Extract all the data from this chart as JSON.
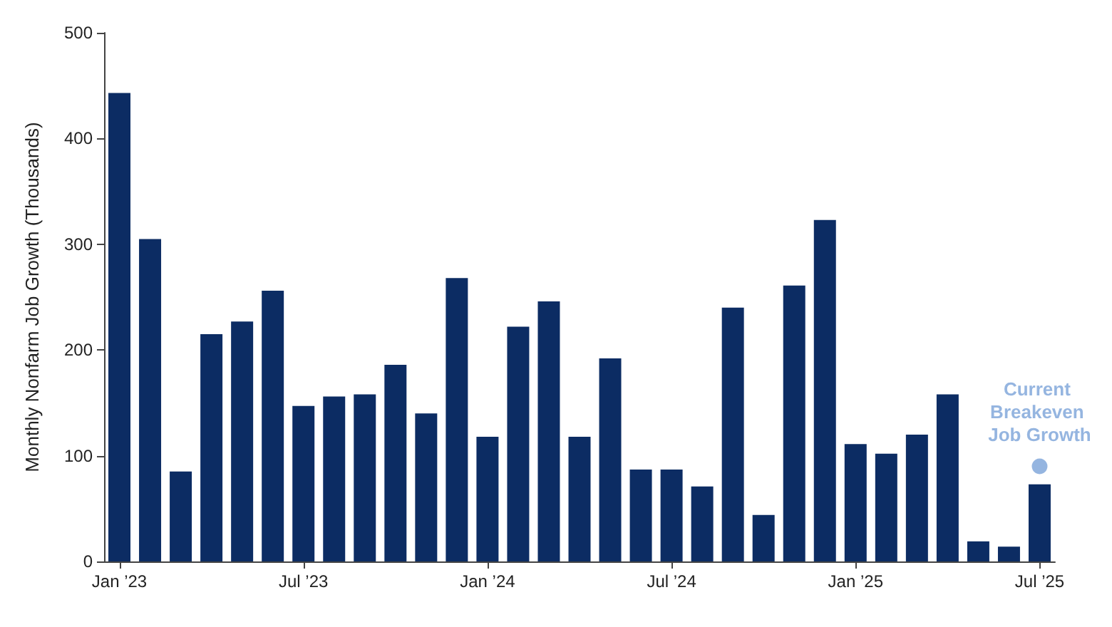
{
  "chart_data": {
    "type": "bar",
    "ylabel": "Monthly Nonfarm Job Growth (Thousands)",
    "categories": [
      "Jan ’23",
      null,
      null,
      null,
      null,
      null,
      "Jul ’23",
      null,
      null,
      null,
      null,
      null,
      "Jan ’24",
      null,
      null,
      null,
      null,
      null,
      "Jul ’24",
      null,
      null,
      null,
      null,
      null,
      "Jan ’25",
      null,
      null,
      null,
      null,
      null,
      "Jul ’25"
    ],
    "series": [
      {
        "color": "#0c2c63",
        "values": [
          443,
          305,
          85,
          215,
          227,
          256,
          147,
          156,
          158,
          186,
          140,
          268,
          118,
          222,
          246,
          118,
          192,
          87,
          87,
          71,
          240,
          44,
          261,
          323,
          111,
          102,
          120,
          158,
          19,
          14,
          73
        ]
      },
      {
        "type": "scatter",
        "color": "#7ba3d8",
        "x": [
          "Jul ’25"
        ],
        "values": [
          90
        ]
      }
    ],
    "marker": "circle",
    "annotations": [
      {
        "text": "Current Breakeven Job Growth",
        "x": "Jul ’25",
        "y": 90
      }
    ],
    "ylim": [
      0,
      500
    ],
    "yticks": [
      0,
      100,
      200,
      300,
      400,
      500
    ],
    "grid": false
  }
}
